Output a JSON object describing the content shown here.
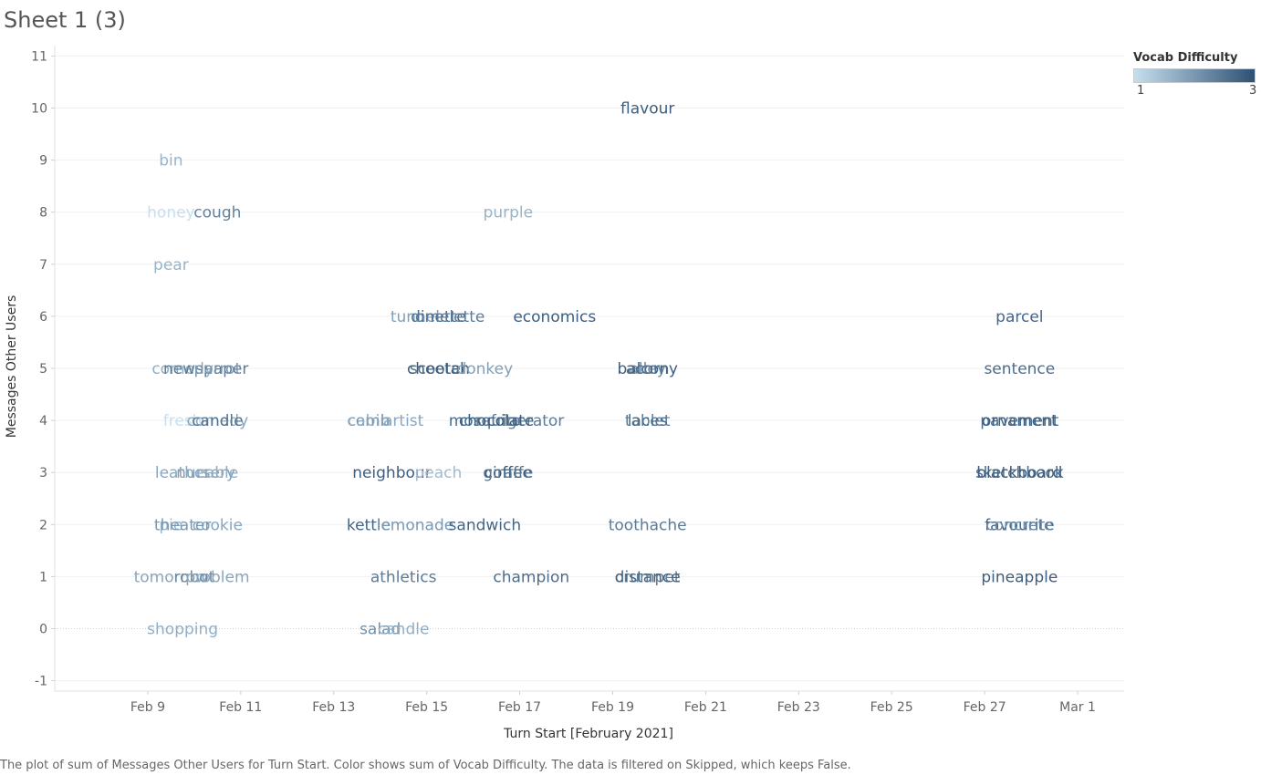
{
  "sheet": {
    "title": "Sheet 1 (3)",
    "caption": "The plot of sum of Messages Other Users for Turn Start.  Color shows sum of Vocab Difficulty. The data is filtered on Skipped, which keeps False."
  },
  "legend": {
    "title": "Vocab Difficulty",
    "min_label": "1",
    "max_label": "3",
    "color_low": "#c6dfee",
    "color_high": "#2e5073"
  },
  "chart_data": {
    "type": "scatter",
    "mark": "text",
    "title": "Sheet 1 (3)",
    "xlabel": "Turn Start [February 2021]",
    "ylabel": "Messages Other Users",
    "x_domain": [
      "2021-02-07",
      "2021-03-02"
    ],
    "ylim": [
      -1.2,
      11.2
    ],
    "y_ticks": [
      -1,
      0,
      1,
      2,
      3,
      4,
      5,
      6,
      7,
      8,
      9,
      10,
      11
    ],
    "x_ticks": [
      {
        "date": "2021-02-09",
        "label": "Feb 9"
      },
      {
        "date": "2021-02-11",
        "label": "Feb 11"
      },
      {
        "date": "2021-02-13",
        "label": "Feb 13"
      },
      {
        "date": "2021-02-15",
        "label": "Feb 15"
      },
      {
        "date": "2021-02-17",
        "label": "Feb 17"
      },
      {
        "date": "2021-02-19",
        "label": "Feb 19"
      },
      {
        "date": "2021-02-21",
        "label": "Feb 21"
      },
      {
        "date": "2021-02-23",
        "label": "Feb 23"
      },
      {
        "date": "2021-02-25",
        "label": "Feb 25"
      },
      {
        "date": "2021-02-27",
        "label": "Feb 27"
      },
      {
        "date": "2021-03-01",
        "label": "Mar 1"
      }
    ],
    "grid": "horizontal",
    "color_field": "Vocab Difficulty",
    "color_range": [
      1,
      3
    ],
    "legend_position": "top-right",
    "points": [
      {
        "label": "flavour",
        "x": "2021-02-19 18:00",
        "y": 10,
        "difficulty": 2.8
      },
      {
        "label": "bin",
        "x": "2021-02-09 12:00",
        "y": 9,
        "difficulty": 1.6
      },
      {
        "label": "honey",
        "x": "2021-02-09 12:00",
        "y": 8,
        "difficulty": 1.0
      },
      {
        "label": "cough",
        "x": "2021-02-10 12:00",
        "y": 8,
        "difficulty": 2.3
      },
      {
        "label": "purple",
        "x": "2021-02-16 18:00",
        "y": 8,
        "difficulty": 1.6
      },
      {
        "label": "pear",
        "x": "2021-02-09 12:00",
        "y": 7,
        "difficulty": 1.6
      },
      {
        "label": "tunnel",
        "x": "2021-02-14 18:00",
        "y": 6,
        "difficulty": 1.9
      },
      {
        "label": "dinette",
        "x": "2021-02-15 06:00",
        "y": 6,
        "difficulty": 2.6
      },
      {
        "label": "omelette",
        "x": "2021-02-15 12:00",
        "y": 6,
        "difficulty": 2.4
      },
      {
        "label": "economics",
        "x": "2021-02-17 18:00",
        "y": 6,
        "difficulty": 2.8
      },
      {
        "label": "parcel",
        "x": "2021-02-27 18:00",
        "y": 6,
        "difficulty": 2.7
      },
      {
        "label": "comedy",
        "x": "2021-02-09 18:00",
        "y": 5,
        "difficulty": 1.7
      },
      {
        "label": "newspaper",
        "x": "2021-02-10 06:00",
        "y": 5,
        "difficulty": 2.4
      },
      {
        "label": "parrot",
        "x": "2021-02-10 12:00",
        "y": 5,
        "difficulty": 2.0
      },
      {
        "label": "scooter",
        "x": "2021-02-15 06:00",
        "y": 5,
        "difficulty": 2.5
      },
      {
        "label": "cheetah",
        "x": "2021-02-15 06:00",
        "y": 5,
        "difficulty": 2.8
      },
      {
        "label": "donkey",
        "x": "2021-02-16 06:00",
        "y": 5,
        "difficulty": 1.9
      },
      {
        "label": "balcony",
        "x": "2021-02-19 18:00",
        "y": 5,
        "difficulty": 2.8
      },
      {
        "label": "alley",
        "x": "2021-02-19 18:00",
        "y": 5,
        "difficulty": 2.2
      },
      {
        "label": "acorn",
        "x": "2021-02-19 18:00",
        "y": 5,
        "difficulty": 2.6
      },
      {
        "label": "sentence",
        "x": "2021-02-27 18:00",
        "y": 5,
        "difficulty": 2.6
      },
      {
        "label": "fresh",
        "x": "2021-02-09 18:00",
        "y": 4,
        "difficulty": 1.0
      },
      {
        "label": "comedy",
        "x": "2021-02-10 12:00",
        "y": 4,
        "difficulty": 1.8
      },
      {
        "label": "candle",
        "x": "2021-02-10 12:00",
        "y": 4,
        "difficulty": 2.5
      },
      {
        "label": "comb",
        "x": "2021-02-13 18:00",
        "y": 4,
        "difficulty": 2.1
      },
      {
        "label": "cabin",
        "x": "2021-02-13 18:00",
        "y": 4,
        "difficulty": 1.8
      },
      {
        "label": "artist",
        "x": "2021-02-14 12:00",
        "y": 4,
        "difficulty": 1.8
      },
      {
        "label": "mosquito",
        "x": "2021-02-16 06:00",
        "y": 4,
        "difficulty": 2.6
      },
      {
        "label": "refrigerator",
        "x": "2021-02-17 00:00",
        "y": 4,
        "difficulty": 2.4
      },
      {
        "label": "chocolate",
        "x": "2021-02-16 12:00",
        "y": 4,
        "difficulty": 2.8
      },
      {
        "label": "tablet",
        "x": "2021-02-19 18:00",
        "y": 4,
        "difficulty": 2.4
      },
      {
        "label": "laces",
        "x": "2021-02-19 18:00",
        "y": 4,
        "difficulty": 2.6
      },
      {
        "label": "pavement",
        "x": "2021-02-27 18:00",
        "y": 4,
        "difficulty": 2.6
      },
      {
        "label": "ornament",
        "x": "2021-02-27 18:00",
        "y": 4,
        "difficulty": 2.8
      },
      {
        "label": "leather",
        "x": "2021-02-09 18:00",
        "y": 3,
        "difficulty": 1.8
      },
      {
        "label": "nursery",
        "x": "2021-02-10 06:00",
        "y": 3,
        "difficulty": 1.9
      },
      {
        "label": "cable",
        "x": "2021-02-10 12:00",
        "y": 3,
        "difficulty": 1.7
      },
      {
        "label": "neighbour",
        "x": "2021-02-14 06:00",
        "y": 3,
        "difficulty": 2.8
      },
      {
        "label": "peach",
        "x": "2021-02-15 06:00",
        "y": 3,
        "difficulty": 1.5
      },
      {
        "label": "coffee",
        "x": "2021-02-16 18:00",
        "y": 3,
        "difficulty": 2.9
      },
      {
        "label": "giraffe",
        "x": "2021-02-16 18:00",
        "y": 3,
        "difficulty": 2.5
      },
      {
        "label": "sketchbook",
        "x": "2021-02-27 18:00",
        "y": 3,
        "difficulty": 2.6
      },
      {
        "label": "blackboard",
        "x": "2021-02-27 18:00",
        "y": 3,
        "difficulty": 2.8
      },
      {
        "label": "pie",
        "x": "2021-02-09 12:00",
        "y": 2,
        "difficulty": 1.6
      },
      {
        "label": "cookie",
        "x": "2021-02-10 12:00",
        "y": 2,
        "difficulty": 1.8
      },
      {
        "label": "theater",
        "x": "2021-02-09 18:00",
        "y": 2,
        "difficulty": 2.0
      },
      {
        "label": "kettle",
        "x": "2021-02-13 18:00",
        "y": 2,
        "difficulty": 2.7
      },
      {
        "label": "lemonade",
        "x": "2021-02-14 18:00",
        "y": 2,
        "difficulty": 2.0
      },
      {
        "label": "sandwich",
        "x": "2021-02-16 06:00",
        "y": 2,
        "difficulty": 2.7
      },
      {
        "label": "toothache",
        "x": "2021-02-19 18:00",
        "y": 2,
        "difficulty": 2.4
      },
      {
        "label": "favourite",
        "x": "2021-02-27 18:00",
        "y": 2,
        "difficulty": 2.7
      },
      {
        "label": "concrete",
        "x": "2021-02-27 18:00",
        "y": 2,
        "difficulty": 2.2
      },
      {
        "label": "tomorrow",
        "x": "2021-02-09 12:00",
        "y": 1,
        "difficulty": 1.8
      },
      {
        "label": "robot",
        "x": "2021-02-10 00:00",
        "y": 1,
        "difficulty": 2.2
      },
      {
        "label": "problem",
        "x": "2021-02-10 12:00",
        "y": 1,
        "difficulty": 1.8
      },
      {
        "label": "athletics",
        "x": "2021-02-14 12:00",
        "y": 1,
        "difficulty": 2.4
      },
      {
        "label": "champion",
        "x": "2021-02-17 06:00",
        "y": 1,
        "difficulty": 2.6
      },
      {
        "label": "crumpet",
        "x": "2021-02-19 18:00",
        "y": 1,
        "difficulty": 2.4
      },
      {
        "label": "distance",
        "x": "2021-02-19 18:00",
        "y": 1,
        "difficulty": 2.7
      },
      {
        "label": "pineapple",
        "x": "2021-02-27 18:00",
        "y": 1,
        "difficulty": 2.8
      },
      {
        "label": "shopping",
        "x": "2021-02-09 18:00",
        "y": 0,
        "difficulty": 1.7
      },
      {
        "label": "salad",
        "x": "2021-02-14 00:00",
        "y": 0,
        "difficulty": 2.1
      },
      {
        "label": "candle",
        "x": "2021-02-14 12:00",
        "y": 0,
        "difficulty": 1.7
      }
    ]
  }
}
